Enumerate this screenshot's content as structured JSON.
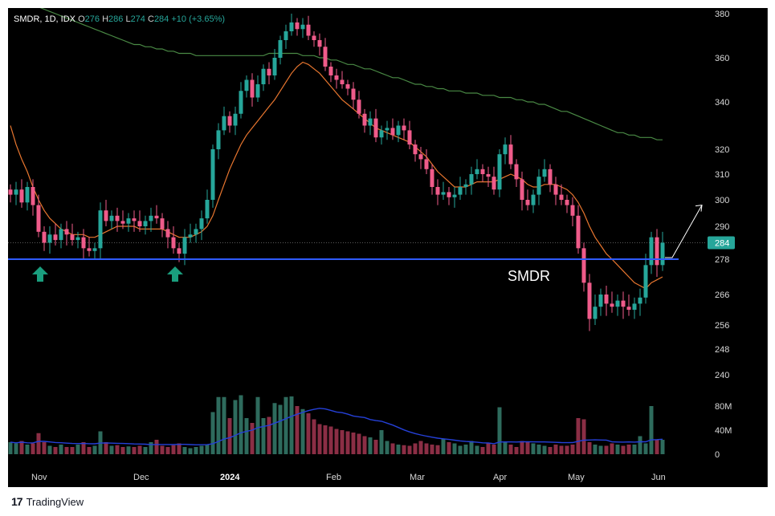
{
  "legend": {
    "symbol": "SMDR, 1D, IDX",
    "o_label": "O",
    "o_value": "276",
    "h_label": "H",
    "h_value": "286",
    "l_label": "L",
    "l_value": "274",
    "c_label": "C",
    "c_value": "284",
    "change": "+10 (+3.65%)"
  },
  "footer": {
    "brand": "TradingView",
    "logo_glyph": "17"
  },
  "colors": {
    "up": "#26a69a",
    "down": "#ef5b8a",
    "vol_up": "#2e6b5d",
    "vol_down": "#8b2e45",
    "ma_short": "#e8762f",
    "ma_long": "#4a8a45",
    "vol_ma": "#2540d8",
    "support": "#2f5bff",
    "arrow": "#1a9e7e",
    "price_badge": "#26a69a"
  },
  "chart_data": {
    "type": "candlestick",
    "symbol": "SMDR",
    "timeframe": "1D",
    "exchange": "IDX",
    "price_axis_ticks": [
      380,
      360,
      340,
      320,
      310,
      300,
      290,
      278,
      266,
      256,
      248,
      240
    ],
    "volume_axis_ticks": [
      "80M",
      "40M",
      "0"
    ],
    "date_labels": [
      "Nov",
      "Dec",
      "2024",
      "Feb",
      "Mar",
      "Apr",
      "May",
      "Jun"
    ],
    "last_price": 284,
    "support_level": 278,
    "annotation": "SMDR",
    "projection_target": 298,
    "close_prices": [
      302,
      304,
      299,
      305,
      298,
      288,
      284,
      287,
      285,
      289,
      287,
      285,
      286,
      282,
      281,
      282,
      296,
      292,
      294,
      292,
      291,
      293,
      292,
      290,
      292,
      294,
      293,
      289,
      286,
      282,
      280,
      286,
      287,
      289,
      293,
      300,
      320,
      328,
      334,
      330,
      335,
      345,
      350,
      342,
      348,
      355,
      352,
      360,
      368,
      372,
      376,
      373,
      375,
      370,
      368,
      365,
      356,
      352,
      350,
      348,
      346,
      341,
      335,
      330,
      333,
      325,
      328,
      329,
      326,
      330,
      328,
      322,
      318,
      316,
      312,
      305,
      302,
      303,
      301,
      302,
      305,
      306,
      310,
      312,
      310,
      309,
      304,
      318,
      322,
      314,
      308,
      300,
      298,
      302,
      309,
      312,
      306,
      302,
      300,
      298,
      294,
      282,
      270,
      258,
      262,
      266,
      263,
      262,
      264,
      262,
      261,
      263,
      265,
      276,
      286,
      276,
      284
    ],
    "volume_millions": [
      20,
      18,
      22,
      16,
      18,
      35,
      20,
      14,
      12,
      16,
      12,
      12,
      16,
      20,
      12,
      14,
      38,
      20,
      14,
      15,
      12,
      13,
      12,
      14,
      12,
      20,
      24,
      14,
      12,
      15,
      18,
      12,
      10,
      12,
      14,
      16,
      70,
      95,
      95,
      60,
      90,
      98,
      60,
      52,
      95,
      60,
      62,
      85,
      82,
      95,
      96,
      80,
      75,
      68,
      58,
      50,
      48,
      46,
      42,
      40,
      38,
      36,
      34,
      30,
      28,
      24,
      40,
      22,
      18,
      16,
      15,
      14,
      18,
      22,
      18,
      16,
      15,
      26,
      20,
      18,
      14,
      16,
      22,
      14,
      12,
      18,
      16,
      78,
      20,
      16,
      12,
      22,
      20,
      18,
      16,
      14,
      12,
      16,
      14,
      14,
      16,
      60,
      58,
      20,
      16,
      14,
      14,
      18,
      16,
      14,
      16,
      16,
      30,
      18,
      80,
      24,
      24
    ],
    "ma_short_values": [
      330,
      322,
      316,
      311,
      305,
      300,
      296,
      293,
      291,
      289,
      288,
      287,
      287,
      287,
      286,
      286,
      287,
      288,
      289,
      290,
      290,
      290,
      290,
      289,
      289,
      289,
      289,
      289,
      288,
      287,
      286,
      286,
      286,
      287,
      288,
      290,
      294,
      300,
      306,
      312,
      317,
      322,
      326,
      329,
      332,
      335,
      338,
      341,
      345,
      349,
      353,
      356,
      358,
      357,
      355,
      353,
      350,
      347,
      344,
      341,
      339,
      337,
      335,
      333,
      331,
      329,
      328,
      327,
      326,
      325,
      324,
      323,
      321,
      319,
      317,
      314,
      311,
      309,
      307,
      305,
      305,
      305,
      306,
      307,
      307,
      307,
      307,
      308,
      309,
      310,
      309,
      308,
      306,
      305,
      305,
      306,
      306,
      306,
      305,
      304,
      302,
      299,
      295,
      290,
      286,
      283,
      280,
      278,
      276,
      274,
      272,
      270,
      269,
      268,
      270,
      271,
      272
    ],
    "ma_long_values": [
      388,
      387,
      386,
      385,
      384,
      383,
      382,
      381,
      380,
      379,
      378,
      377,
      376,
      375,
      374,
      373,
      372,
      371,
      370,
      369,
      368,
      367,
      366,
      366,
      365,
      365,
      364,
      364,
      363,
      363,
      362,
      362,
      362,
      361,
      361,
      361,
      361,
      361,
      361,
      361,
      361,
      361,
      361,
      361,
      361,
      361,
      362,
      362,
      362,
      362,
      362,
      362,
      361,
      361,
      361,
      360,
      360,
      359,
      359,
      358,
      357,
      357,
      356,
      355,
      355,
      354,
      353,
      352,
      351,
      351,
      350,
      349,
      348,
      348,
      347,
      347,
      346,
      346,
      345,
      345,
      345,
      344,
      344,
      344,
      343,
      343,
      343,
      342,
      342,
      342,
      341,
      341,
      340,
      340,
      339,
      339,
      338,
      337,
      336,
      336,
      335,
      334,
      333,
      332,
      331,
      330,
      329,
      328,
      327,
      327,
      326,
      326,
      325,
      325,
      325,
      324,
      324
    ]
  }
}
